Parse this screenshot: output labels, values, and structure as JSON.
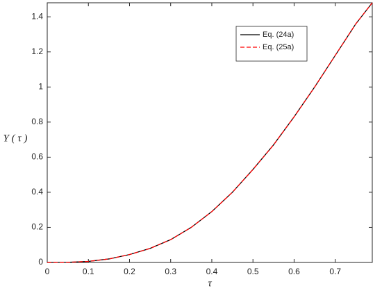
{
  "chart_data": {
    "type": "line",
    "x_label": "τ",
    "y_label": "Y ( τ )",
    "x": [
      0,
      0.05,
      0.1,
      0.15,
      0.2,
      0.25,
      0.3,
      0.35,
      0.4,
      0.45,
      0.5,
      0.55,
      0.6,
      0.65,
      0.7,
      0.75,
      0.79
    ],
    "series": [
      {
        "name": "Eq. (24a)",
        "color": "#000000",
        "dash": "solid",
        "values": [
          0,
          0.001,
          0.006,
          0.02,
          0.045,
          0.08,
          0.13,
          0.2,
          0.29,
          0.4,
          0.53,
          0.67,
          0.83,
          1.0,
          1.18,
          1.36,
          1.48
        ]
      },
      {
        "name": "Eq. (25a)",
        "color": "#ff0000",
        "dash": "dashed",
        "values": [
          0,
          0.001,
          0.006,
          0.02,
          0.045,
          0.08,
          0.13,
          0.2,
          0.29,
          0.4,
          0.53,
          0.67,
          0.83,
          1.0,
          1.18,
          1.36,
          1.48
        ]
      }
    ],
    "xlim": [
      0,
      0.79
    ],
    "ylim": [
      0,
      1.48
    ],
    "xticks": [
      0,
      0.1,
      0.2,
      0.3,
      0.4,
      0.5,
      0.6,
      0.7
    ],
    "yticks": [
      0,
      0.2,
      0.4,
      0.6,
      0.8,
      1,
      1.2,
      1.4
    ],
    "grid": false,
    "legend": "upper-right"
  }
}
